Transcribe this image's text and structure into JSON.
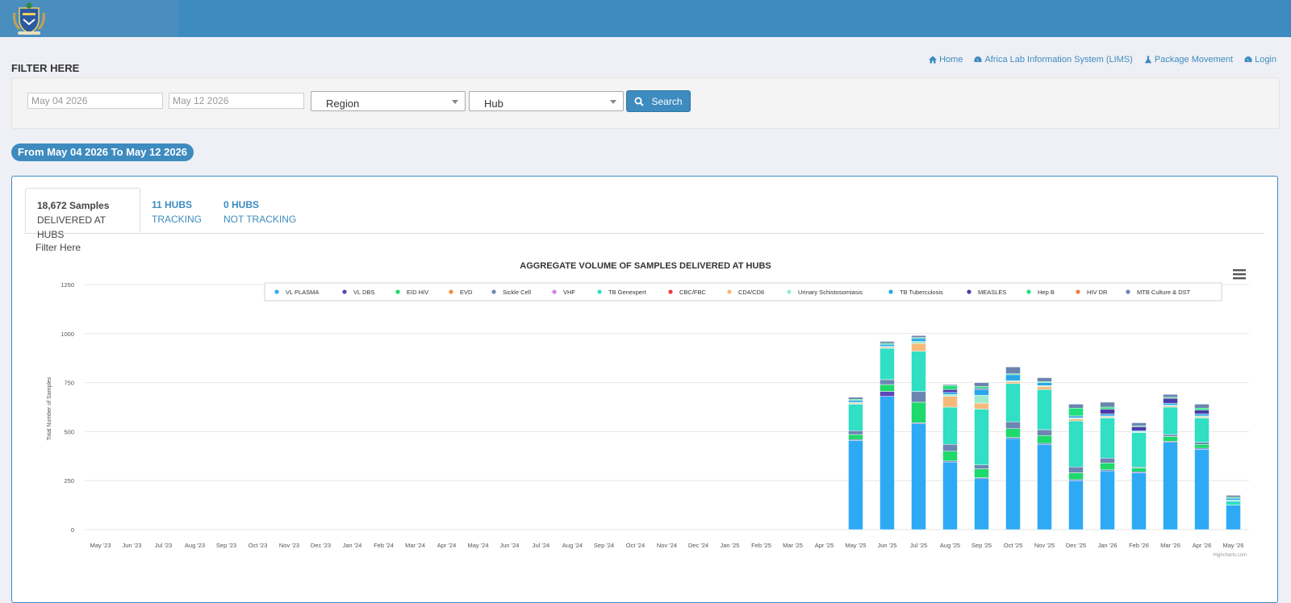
{
  "filters": {
    "title": "FILTER HERE",
    "start_date": "May 04 2026",
    "end_date": "May 12 2026",
    "region": "Region",
    "hub": "Hub",
    "search_label": "Search"
  },
  "nav": {
    "home": "Home",
    "lims": "Africa Lab Information System (LIMS)",
    "package": "Package Movement",
    "login": "Login"
  },
  "range_text": "From May 04 2026 To May 12 2026",
  "tabs": {
    "samples_big": "18,672 Samples",
    "samples_sub": "DELIVERED AT HUBS",
    "tracking_big": "11 HUBS",
    "tracking_sub": "TRACKING",
    "nottracking_big": "0 HUBS",
    "nottracking_sub": "NOT TRACKING"
  },
  "panel_filter_label": "Filter Here",
  "colors": {
    "brand": "#3d8bbf",
    "VL PLASMA": "#2eaaf5",
    "VL DBS": "#5b45b8",
    "EID HIV": "#1ed96b",
    "EVD": "#f28a3c",
    "Sickle Cell": "#6c86b3",
    "VHF": "#d67de8",
    "TB Genexpert": "#30dfc4",
    "CBC/FBC": "#ee3b3b",
    "CD4/CD8": "#f7b97a",
    "Urinary Schistosomiasis": "#9ceccc",
    "TB Tuberculosis": "#29a6ea",
    "MEASLES": "#4a3ca8",
    "Hep B": "#1fe07a",
    "HIV DR": "#f07a3f",
    "MTB Culture & DST": "#6a84b0"
  },
  "chart_data": {
    "type": "bar",
    "stacked": true,
    "title": "AGGREGATE VOLUME OF SAMPLES DELIVERED AT HUBS",
    "ylabel": "Total Number of Samples",
    "xlabel": "",
    "ylim": [
      0,
      1250
    ],
    "yticks": [
      0,
      250,
      500,
      750,
      1000,
      1250
    ],
    "grid": true,
    "legend_position": "top",
    "credit": "Highcharts.com",
    "categories": [
      "May '23",
      "Jun '23",
      "Jul '23",
      "Aug '23",
      "Sep '23",
      "Oct '23",
      "Nov '23",
      "Dec '23",
      "Jan '24",
      "Feb '24",
      "Mar '24",
      "Apr '24",
      "May '24",
      "Jun '24",
      "Jul '24",
      "Aug '24",
      "Sep '24",
      "Oct '24",
      "Nov '24",
      "Dec '24",
      "Jan '25",
      "Feb '25",
      "Mar '25",
      "Apr '25",
      "May '25",
      "Jun '25",
      "Jul '25",
      "Aug '25",
      "Sep '25",
      "Oct '25",
      "Nov '25",
      "Dec '25",
      "Jan '26",
      "Feb '26",
      "Mar '26",
      "Apr '26",
      "May '26"
    ],
    "series": [
      {
        "name": "VL PLASMA",
        "values": [
          0,
          0,
          0,
          0,
          0,
          0,
          0,
          0,
          0,
          0,
          0,
          0,
          0,
          0,
          0,
          0,
          0,
          0,
          0,
          0,
          0,
          0,
          0,
          0,
          455,
          680,
          540,
          345,
          260,
          465,
          435,
          250,
          300,
          290,
          445,
          410,
          125
        ]
      },
      {
        "name": "VL DBS",
        "values": [
          0,
          0,
          0,
          0,
          0,
          0,
          0,
          0,
          0,
          0,
          0,
          0,
          0,
          0,
          0,
          0,
          0,
          0,
          0,
          0,
          0,
          0,
          0,
          0,
          5,
          25,
          5,
          5,
          5,
          5,
          5,
          5,
          5,
          5,
          5,
          5,
          0
        ]
      },
      {
        "name": "EID HIV",
        "values": [
          0,
          0,
          0,
          0,
          0,
          0,
          0,
          0,
          0,
          0,
          0,
          0,
          0,
          0,
          0,
          0,
          0,
          0,
          0,
          0,
          0,
          0,
          0,
          0,
          25,
          35,
          105,
          50,
          45,
          45,
          40,
          35,
          35,
          20,
          25,
          20,
          0
        ]
      },
      {
        "name": "EVD",
        "values": [
          0,
          0,
          0,
          0,
          0,
          0,
          0,
          0,
          0,
          0,
          0,
          0,
          0,
          0,
          0,
          0,
          0,
          0,
          0,
          0,
          0,
          0,
          0,
          0,
          0,
          0,
          0,
          0,
          0,
          0,
          0,
          0,
          0,
          0,
          0,
          0,
          0
        ]
      },
      {
        "name": "Sickle Cell",
        "values": [
          0,
          0,
          0,
          0,
          0,
          0,
          0,
          0,
          0,
          0,
          0,
          0,
          0,
          0,
          0,
          0,
          0,
          0,
          0,
          0,
          0,
          0,
          0,
          0,
          20,
          25,
          55,
          35,
          20,
          35,
          30,
          30,
          25,
          5,
          10,
          10,
          0
        ]
      },
      {
        "name": "VHF",
        "values": [
          0,
          0,
          0,
          0,
          0,
          0,
          0,
          0,
          0,
          0,
          0,
          0,
          0,
          0,
          0,
          0,
          0,
          0,
          0,
          0,
          0,
          0,
          0,
          0,
          0,
          0,
          0,
          0,
          0,
          0,
          0,
          0,
          0,
          0,
          0,
          0,
          0
        ]
      },
      {
        "name": "TB Genexpert",
        "values": [
          0,
          0,
          0,
          0,
          0,
          0,
          0,
          0,
          0,
          0,
          0,
          0,
          0,
          0,
          0,
          0,
          0,
          0,
          0,
          0,
          0,
          0,
          0,
          0,
          135,
          160,
          205,
          190,
          285,
          195,
          205,
          235,
          205,
          175,
          140,
          125,
          20
        ]
      },
      {
        "name": "CBC/FBC",
        "values": [
          0,
          0,
          0,
          0,
          0,
          0,
          0,
          0,
          0,
          0,
          0,
          0,
          0,
          0,
          0,
          0,
          0,
          0,
          0,
          0,
          0,
          0,
          0,
          0,
          0,
          0,
          0,
          0,
          0,
          0,
          0,
          0,
          0,
          0,
          0,
          0,
          0
        ]
      },
      {
        "name": "CD4/CD8",
        "values": [
          0,
          0,
          0,
          0,
          0,
          0,
          0,
          0,
          0,
          0,
          0,
          0,
          0,
          0,
          0,
          0,
          0,
          0,
          0,
          0,
          0,
          0,
          0,
          0,
          5,
          5,
          40,
          55,
          30,
          10,
          15,
          10,
          5,
          0,
          5,
          5,
          0
        ]
      },
      {
        "name": "Urinary Schistosomiasis",
        "values": [
          0,
          0,
          0,
          0,
          0,
          0,
          0,
          0,
          0,
          0,
          0,
          0,
          0,
          0,
          0,
          0,
          0,
          0,
          0,
          0,
          0,
          0,
          0,
          0,
          5,
          5,
          10,
          10,
          40,
          5,
          5,
          5,
          5,
          5,
          5,
          5,
          5
        ]
      },
      {
        "name": "TB Tuberculosis",
        "values": [
          0,
          0,
          0,
          0,
          0,
          0,
          0,
          0,
          0,
          0,
          0,
          0,
          0,
          0,
          0,
          0,
          0,
          0,
          0,
          0,
          0,
          0,
          0,
          0,
          10,
          10,
          15,
          10,
          30,
          30,
          15,
          10,
          10,
          5,
          10,
          10,
          10
        ]
      },
      {
        "name": "MEASLES",
        "values": [
          0,
          0,
          0,
          0,
          0,
          0,
          0,
          0,
          0,
          0,
          0,
          0,
          0,
          0,
          0,
          0,
          0,
          0,
          0,
          0,
          0,
          0,
          0,
          0,
          0,
          0,
          0,
          15,
          5,
          0,
          0,
          0,
          25,
          20,
          25,
          20,
          0
        ]
      },
      {
        "name": "Hep B",
        "values": [
          0,
          0,
          0,
          0,
          0,
          0,
          0,
          0,
          0,
          0,
          0,
          0,
          0,
          0,
          0,
          0,
          0,
          0,
          0,
          0,
          0,
          0,
          0,
          0,
          5,
          5,
          5,
          20,
          10,
          5,
          5,
          40,
          10,
          5,
          5,
          10,
          5
        ]
      },
      {
        "name": "HIV DR",
        "values": [
          0,
          0,
          0,
          0,
          0,
          0,
          0,
          0,
          0,
          0,
          0,
          0,
          0,
          0,
          0,
          0,
          0,
          0,
          0,
          0,
          0,
          0,
          0,
          0,
          0,
          0,
          0,
          0,
          0,
          0,
          0,
          0,
          0,
          0,
          0,
          0,
          0
        ]
      },
      {
        "name": "MTB Culture & DST",
        "values": [
          0,
          0,
          0,
          0,
          0,
          0,
          0,
          0,
          0,
          0,
          0,
          0,
          0,
          0,
          0,
          0,
          0,
          0,
          0,
          0,
          0,
          0,
          0,
          0,
          10,
          10,
          10,
          5,
          20,
          35,
          20,
          20,
          25,
          15,
          15,
          20,
          10
        ]
      }
    ]
  }
}
